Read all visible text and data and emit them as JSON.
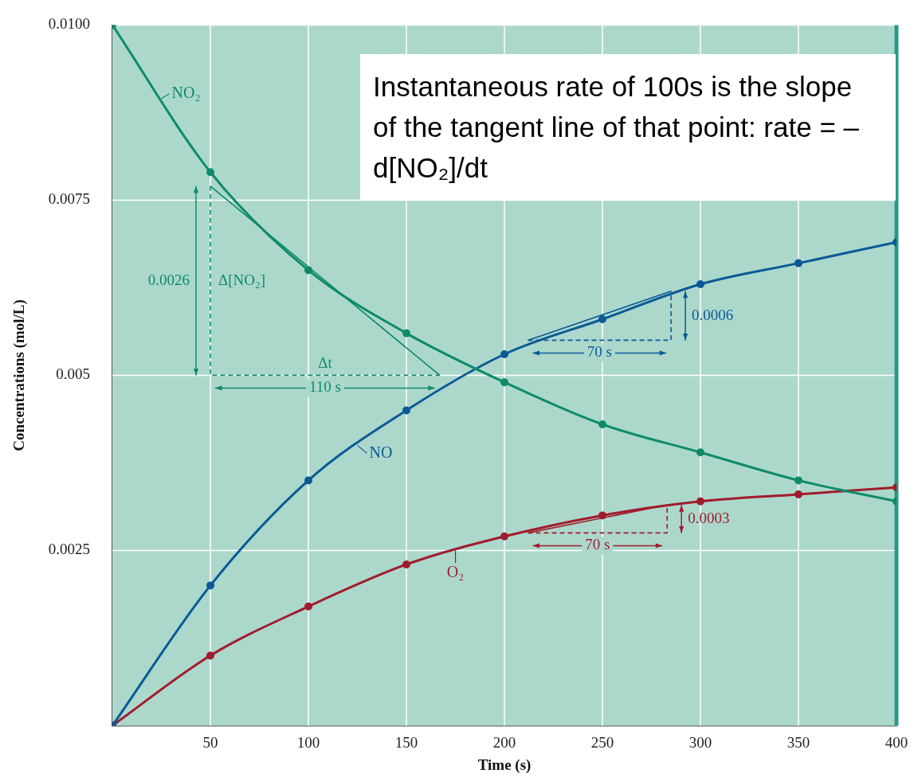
{
  "chart_data": {
    "type": "line",
    "xlabel": "Time (s)",
    "ylabel": "Concentrations (mol/L)",
    "x": [
      0,
      50,
      100,
      150,
      200,
      250,
      300,
      350,
      400
    ],
    "series": [
      {
        "name": "NO₂",
        "color": "#0e8a6a",
        "values": [
          0.01,
          0.0079,
          0.0065,
          0.0056,
          0.0049,
          0.0043,
          0.0039,
          0.0035,
          0.0032
        ]
      },
      {
        "name": "NO",
        "color": "#0b5a96",
        "values": [
          0,
          0.002,
          0.0035,
          0.0045,
          0.0053,
          0.0058,
          0.0063,
          0.0066,
          0.0069
        ]
      },
      {
        "name": "O₂",
        "color": "#a01c2c",
        "values": [
          0,
          0.001,
          0.0017,
          0.0023,
          0.0027,
          0.003,
          0.0032,
          0.0033,
          0.0034
        ]
      },
      {
        "type": "line",
        "color": "#0e8a6a",
        "marker": "none",
        "x": [
          50,
          167
        ],
        "values": [
          0.0077,
          0.005
        ]
      },
      {
        "type": "line",
        "color": "#0b5a96",
        "marker": "none",
        "x": [
          212,
          285
        ],
        "values": [
          0.0055,
          0.0062
        ]
      },
      {
        "type": "line",
        "color": "#a01c2c",
        "marker": "none",
        "x": [
          212,
          283
        ],
        "values": [
          0.00275,
          0.00315
        ]
      },
      {
        "type": "line",
        "color": "#0e8a6a",
        "marker": "none",
        "line_style": "dashed",
        "x": [
          50,
          50,
          167
        ],
        "values": [
          0.0077,
          0.005,
          0.005
        ]
      },
      {
        "type": "line",
        "color": "#0b5a96",
        "marker": "none",
        "line_style": "dashed",
        "x": [
          212,
          285,
          285
        ],
        "values": [
          0.0055,
          0.0055,
          0.0062
        ]
      },
      {
        "type": "line",
        "color": "#a01c2c",
        "marker": "none",
        "line_style": "dashed",
        "x": [
          212,
          283,
          283
        ],
        "values": [
          0.00275,
          0.00275,
          0.00315
        ]
      }
    ],
    "xlim": [
      0,
      400
    ],
    "xticks": [
      50,
      100,
      150,
      200,
      250,
      300,
      350,
      400
    ],
    "ylim": [
      0,
      0.01
    ],
    "yticks": [
      0.0025,
      0.005,
      0.0075,
      {
        "value": 0.01,
        "label": "0.0100"
      }
    ],
    "grid": true,
    "legend": "top left",
    "marker": "circle",
    "annotations": [
      "0.0026",
      "Δ[NO₂]",
      "Δt",
      "110 s",
      "70 s",
      "0.0006",
      "0.0003",
      "70 s",
      "Instantaneous rate of 100s is the slope of the tangent line of that point: rate = – d[NO₂]/dt"
    ]
  }
}
